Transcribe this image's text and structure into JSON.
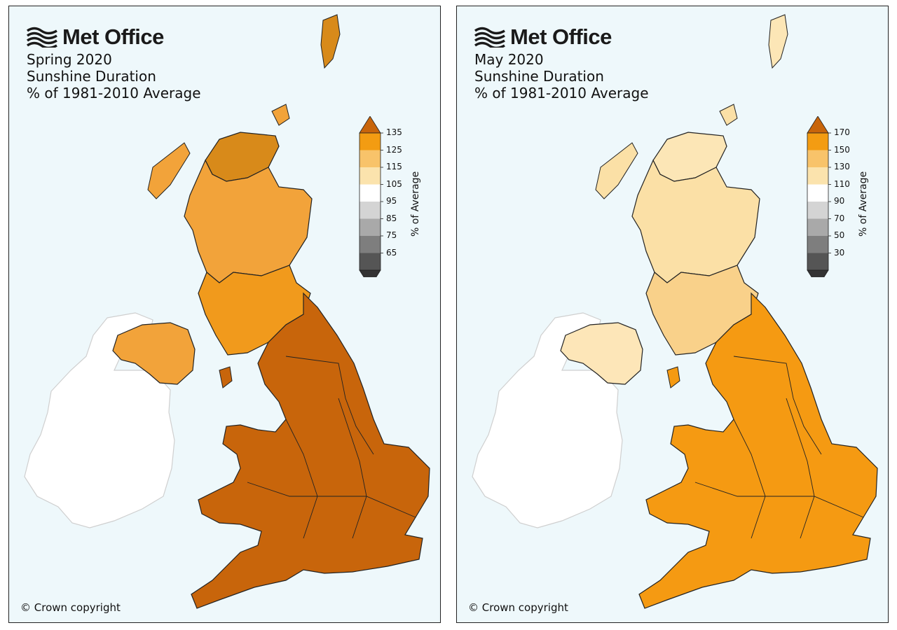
{
  "brand": {
    "name": "Met Office",
    "logo_icon": "met-office-wave-icon"
  },
  "panels": [
    {
      "id": "spring",
      "title_lines": [
        "Spring 2020",
        "Sunshine Duration",
        "% of 1981-2010 Average"
      ],
      "legend": {
        "title": "% of Average",
        "ticks": [
          "135",
          "125",
          "115",
          "105",
          "95",
          "85",
          "75",
          "65"
        ],
        "colors": [
          "#c8650b",
          "#f39c12",
          "#f8c36a",
          "#fbe3ad",
          "#ffffff",
          "#d4d4d4",
          "#a9a9a9",
          "#7e7e7e",
          "#555555",
          "#333333"
        ]
      },
      "region_colors": {
        "scotland_north": "#d88a1a",
        "scotland_mid": "#f2a33a",
        "scotland_south": "#f19a1c",
        "northern_ireland": "#f2a33a",
        "england_wales": "#c8650b",
        "ireland": "#ffffff"
      },
      "copyright": "© Crown copyright"
    },
    {
      "id": "may",
      "title_lines": [
        "May 2020",
        "Sunshine Duration",
        "% of 1981-2010 Average"
      ],
      "legend": {
        "title": "% of Average",
        "ticks": [
          "170",
          "150",
          "130",
          "110",
          "90",
          "70",
          "50",
          "30"
        ],
        "colors": [
          "#c8650b",
          "#f39c12",
          "#f8c36a",
          "#fbe3ad",
          "#ffffff",
          "#d4d4d4",
          "#a9a9a9",
          "#7e7e7e",
          "#555555",
          "#333333"
        ]
      },
      "region_colors": {
        "scotland_north": "#fce6b6",
        "scotland_mid": "#fbe0a6",
        "scotland_south": "#f9d18a",
        "northern_ireland": "#fde6b8",
        "england_wales": "#f59a12",
        "ireland": "#ffffff"
      },
      "copyright": "© Crown copyright"
    }
  ]
}
